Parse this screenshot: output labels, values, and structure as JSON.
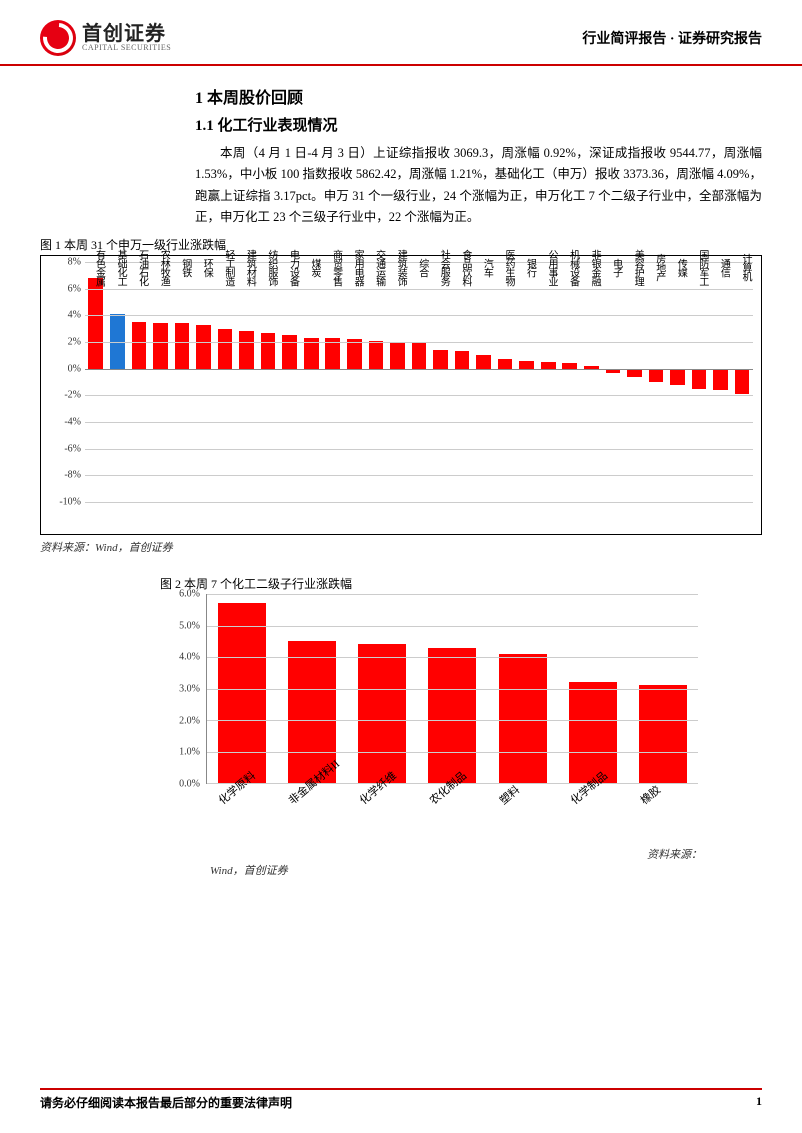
{
  "header": {
    "logo_cn": "首创证券",
    "logo_en": "CAPITAL SECURITIES",
    "right": "行业简评报告 · 证券研究报告"
  },
  "section": {
    "h1": "1 本周股价回顾",
    "h2": "1.1 化工行业表现情况",
    "para": "本周（4 月 1 日-4 月 3 日）上证综指报收 3069.3，周涨幅 0.92%，深证成指报收 9544.77，周涨幅 1.53%，中小板 100 指数报收 5862.42，周涨幅 1.21%，基础化工（申万）报收 3373.36，周涨幅 4.09%，跑赢上证综指 3.17pct。申万 31 个一级行业，24 个涨幅为正，申万化工 7 个二级子行业中，全部涨幅为正，申万化工 23 个三级子行业中，22 个涨幅为正。"
  },
  "chart1": {
    "title": "图 1 本周 31 个申万一级行业涨跌幅",
    "type": "bar",
    "ylim": [
      -10,
      8
    ],
    "yticks": [
      8,
      6,
      4,
      2,
      0,
      -2,
      -4,
      -6,
      -8,
      -10
    ],
    "ytick_labels": [
      "8%",
      "6%",
      "4%",
      "2%",
      "0%",
      "-2%",
      "-4%",
      "-6%",
      "-8%",
      "-10%"
    ],
    "grid_color": "#cccccc",
    "default_color": "#ff0000",
    "highlight_color": "#1f77d4",
    "highlight_index": 1,
    "categories": [
      "有色金属",
      "基础化工",
      "石油石化",
      "农林牧渔",
      "钢铁",
      "环保",
      "轻工制造",
      "建筑材料",
      "纺织服饰",
      "电力设备",
      "煤炭",
      "商贸零售",
      "家用电器",
      "交通运输",
      "建筑装饰",
      "综合",
      "社会服务",
      "食品饮料",
      "汽车",
      "医药生物",
      "银行",
      "公用事业",
      "机械设备",
      "非银金融",
      "电子",
      "美容护理",
      "房地产",
      "传媒",
      "国防军工",
      "通信",
      "计算机"
    ],
    "values": [
      6.8,
      4.1,
      3.5,
      3.4,
      3.4,
      3.3,
      3.0,
      2.8,
      2.7,
      2.5,
      2.3,
      2.3,
      2.2,
      2.1,
      2.0,
      1.9,
      1.4,
      1.3,
      1.0,
      0.7,
      0.6,
      0.5,
      0.4,
      0.2,
      -0.3,
      -0.6,
      -1.0,
      -1.2,
      -1.5,
      -1.6,
      -1.9
    ],
    "source": "资料来源：Wind，首创证券"
  },
  "chart2": {
    "title": "图 2 本周 7 个化工二级子行业涨跌幅",
    "type": "bar",
    "ylim": [
      0,
      6
    ],
    "yticks": [
      6,
      5,
      4,
      3,
      2,
      1,
      0
    ],
    "ytick_labels": [
      "6.0%",
      "5.0%",
      "4.0%",
      "3.0%",
      "2.0%",
      "1.0%",
      "0.0%"
    ],
    "grid_color": "#cccccc",
    "bar_color": "#ff0000",
    "categories": [
      "化学原料",
      "非金属材料II",
      "化学纤维",
      "农化制品",
      "塑料",
      "化学制品",
      "橡胶"
    ],
    "values": [
      5.7,
      4.5,
      4.4,
      4.3,
      4.1,
      3.2,
      3.1
    ],
    "source_right": "资料来源：",
    "source_left": "Wind，首创证券"
  },
  "footer": {
    "disclaimer": "请务必仔细阅读本报告最后部分的重要法律声明",
    "page": "1"
  }
}
